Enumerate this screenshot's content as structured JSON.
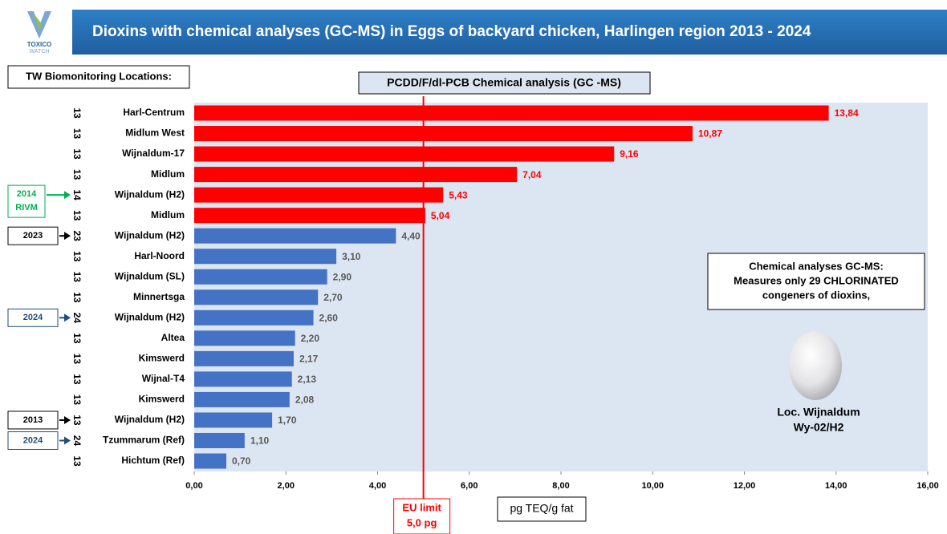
{
  "chart_data": {
    "type": "barh",
    "title": "Dioxins with chemical analyses (GC-MS) in Eggs of backyard chicken, Harlingen region 2013 - 2024",
    "logo": [
      "TOXICO",
      "WATCH"
    ],
    "locations_header": "TW Biomonitoring Locations:",
    "subtitle": "PCDD/F/dl-PCB  Chemical analysis (GC -MS)",
    "x_label": "pg TEQ/g fat",
    "categories": [
      "Harl-Centrum",
      "Midlum West",
      "Wijnaldum-17",
      "Midlum",
      "Wijnaldum (H2)",
      "Midlum",
      "Wijnaldum (H2)",
      "Harl-Noord",
      "Wijnaldum (SL)",
      "Minnertsga",
      "Wijnaldum (H2)",
      "Altea",
      "Kimswerd",
      "Wijnal-T4",
      "Kimswerd",
      "Wijnaldum (H2)",
      "Tzummarum (Ref)",
      "Hichtum (Ref)"
    ],
    "years": [
      "13",
      "13",
      "13",
      "13",
      "14",
      "13",
      "23",
      "13",
      "13",
      "13",
      "24",
      "13",
      "13",
      "13",
      "13",
      "13",
      "24",
      "13"
    ],
    "values": [
      13.84,
      10.87,
      9.16,
      7.04,
      5.43,
      5.04,
      4.4,
      3.1,
      2.9,
      2.7,
      2.6,
      2.2,
      2.17,
      2.13,
      2.08,
      1.7,
      1.1,
      0.7
    ],
    "value_labels": [
      "13,84",
      "10,87",
      "9,16",
      "7,04",
      "5,43",
      "5,04",
      "4,40",
      "3,10",
      "2,90",
      "2,70",
      "2,60",
      "2,20",
      "2,17",
      "2,13",
      "2,08",
      "1,70",
      "1,10",
      "0,70"
    ],
    "colors": [
      "#ff0000",
      "#ff0000",
      "#ff0000",
      "#ff0000",
      "#ff0000",
      "#ff0000",
      "#4472c4",
      "#4472c4",
      "#4472c4",
      "#4472c4",
      "#4472c4",
      "#4472c4",
      "#4472c4",
      "#4472c4",
      "#4472c4",
      "#4472c4",
      "#4472c4",
      "#4472c4"
    ],
    "value_label_colors": [
      "#ff0000",
      "#ff0000",
      "#ff0000",
      "#ff0000",
      "#ff0000",
      "#ff0000",
      "#595959",
      "#595959",
      "#595959",
      "#595959",
      "#595959",
      "#595959",
      "#595959",
      "#595959",
      "#595959",
      "#595959",
      "#595959",
      "#595959"
    ],
    "xlim": [
      0,
      16
    ],
    "xticks": [
      {
        "value": 0,
        "label": "0,00"
      },
      {
        "value": 2,
        "label": "2,00"
      },
      {
        "value": 4,
        "label": "4,00"
      },
      {
        "value": 6,
        "label": "6,00"
      },
      {
        "value": 8,
        "label": "8,00"
      },
      {
        "value": 10,
        "label": "10,00"
      },
      {
        "value": 12,
        "label": "12,00"
      },
      {
        "value": 14,
        "label": "14,00"
      },
      {
        "value": 16,
        "label": "16,00"
      }
    ],
    "limit": {
      "value": 5.0,
      "label": [
        "EU limit",
        "5,0 pg"
      ],
      "color": "#ff0000"
    },
    "side_notes": [
      {
        "row": 4,
        "label": [
          "2014",
          "RIVM"
        ],
        "color": "#00b050"
      },
      {
        "row": 6,
        "label": [
          "2023"
        ],
        "color": "#000000"
      },
      {
        "row": 10,
        "label": [
          "2024"
        ],
        "color": "#1f4e79"
      },
      {
        "row": 15,
        "label": [
          "2013"
        ],
        "color": "#000000"
      },
      {
        "row": 16,
        "label": [
          "2024"
        ],
        "color": "#1f4e79"
      }
    ],
    "note": [
      "Chemical analyses GC-MS:",
      "Measures only 29 CHLORINATED",
      "congeners of dioxins,"
    ],
    "egg_caption": [
      "Loc. Wijnaldum",
      "Wy-02/H2"
    ]
  }
}
